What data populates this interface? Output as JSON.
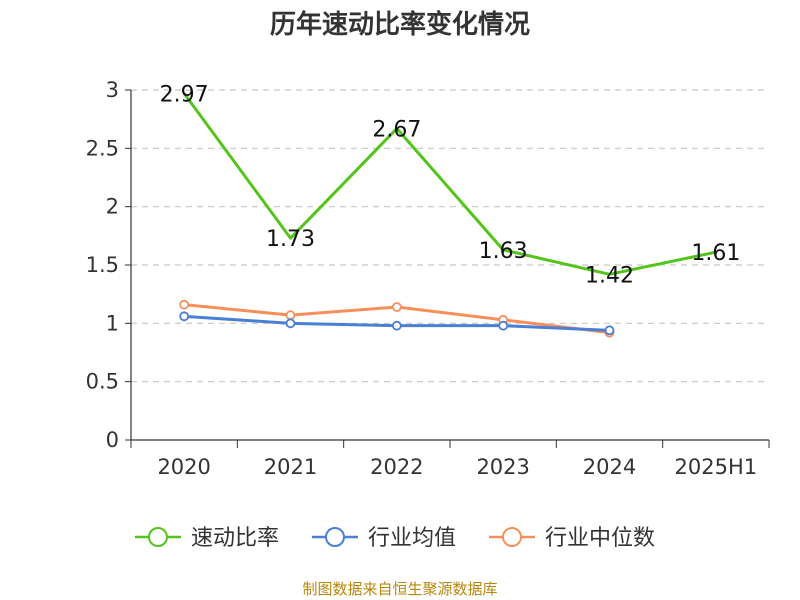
{
  "chart_data": {
    "type": "line",
    "title": "历年速动比率变化情况",
    "categories": [
      "2020",
      "2021",
      "2022",
      "2023",
      "2024",
      "2025H1"
    ],
    "yticks": [
      "0",
      "0.5",
      "1",
      "1.5",
      "2",
      "2.5",
      "3"
    ],
    "ylim": [
      0,
      3
    ],
    "grid": true,
    "legend_position": "bottom",
    "series": [
      {
        "name": "速动比率",
        "color": "#52c41a",
        "values": [
          2.97,
          1.73,
          2.67,
          1.63,
          1.42,
          1.61
        ],
        "labels": [
          "2.97",
          "1.73",
          "2.67",
          "1.63",
          "1.42",
          "1.61"
        ]
      },
      {
        "name": "行业均值",
        "color": "#4a7fd6",
        "values": [
          1.06,
          1.0,
          0.98,
          0.98,
          0.94,
          null
        ]
      },
      {
        "name": "行业中位数",
        "color": "#f78f5b",
        "values": [
          1.16,
          1.07,
          1.14,
          1.03,
          0.92,
          null
        ]
      }
    ],
    "source": "制图数据来自恒生聚源数据库"
  }
}
